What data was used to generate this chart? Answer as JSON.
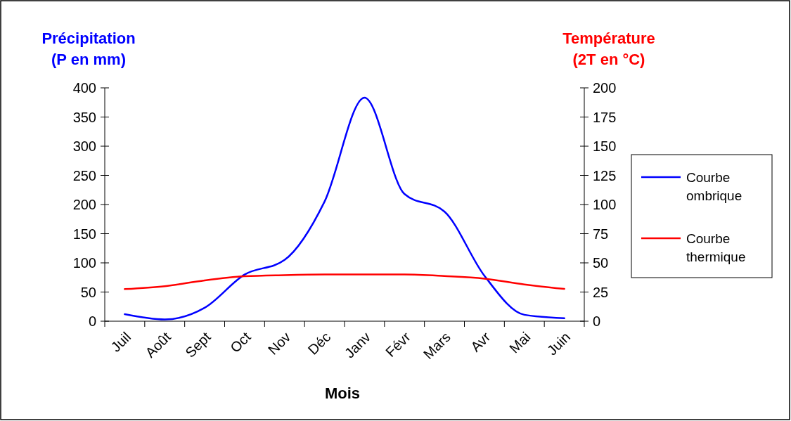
{
  "chart_data": {
    "type": "line",
    "xlabel": "Mois",
    "ylabel": "Précipitation\n(P en mm)",
    "y2label": "Température\n(2T en °C)",
    "categories": [
      "Juil",
      "Août",
      "Sept",
      "Oct",
      "Nov",
      "Déc",
      "Janv",
      "Févr",
      "Mars",
      "Avr",
      "Mai",
      "Juin"
    ],
    "series": [
      {
        "name": "Courbe ombrique",
        "color": "#0000ff",
        "values": [
          12,
          3,
          23,
          80,
          105,
          205,
          383,
          218,
          188,
          78,
          11,
          5
        ]
      },
      {
        "name": "Courbe thermique",
        "color": "#ff0000",
        "axis": "y2",
        "values": [
          27.5,
          30,
          35,
          38.5,
          39.5,
          40,
          40,
          40,
          38.7,
          36.5,
          31.5,
          27.7
        ]
      }
    ],
    "ylim": [
      0,
      400
    ],
    "yticks": [
      0,
      50,
      100,
      150,
      200,
      250,
      300,
      350,
      400
    ],
    "y2lim": [
      0,
      200
    ],
    "y2ticks": [
      0,
      25,
      50,
      75,
      100,
      125,
      150,
      175,
      200
    ],
    "legend": "right",
    "grid": false,
    "marker": "none",
    "line_style": "solid"
  }
}
